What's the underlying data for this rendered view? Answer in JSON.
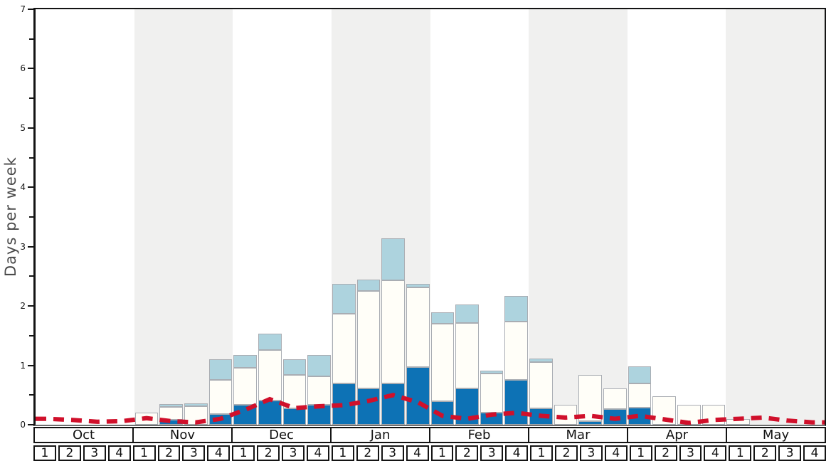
{
  "chart_data": {
    "type": "bar",
    "stacked": true,
    "title": "",
    "ylabel": "Days per week",
    "xlabel": "",
    "ylim": [
      0,
      7
    ],
    "y_major_tick_step": 1,
    "y_minor_tick_step": 0.5,
    "grid": false,
    "legend": "none",
    "months": [
      "Oct",
      "Nov",
      "Dec",
      "Jan",
      "Feb",
      "Mar",
      "Apr",
      "May"
    ],
    "week_labels": [
      "1",
      "2",
      "3",
      "4"
    ],
    "weeks_per_month": 4,
    "band_colors": [
      "#ffffff",
      "#f0f0ef"
    ],
    "bar_border_color": "#a9adb3",
    "axis_color": "#141414",
    "series": [
      {
        "name": "dark-blue-days",
        "color": "#0d72b5",
        "values": [
          0,
          0,
          0,
          0,
          0,
          0.08,
          0,
          0.18,
          0.33,
          0.41,
          0.27,
          0.33,
          0.69,
          0.61,
          0.69,
          0.97,
          0.39,
          0.61,
          0.2,
          0.75,
          0.28,
          0,
          0.06,
          0.26,
          0.29,
          0,
          0,
          0,
          0,
          0,
          0,
          0
        ]
      },
      {
        "name": "white-days",
        "color": "#fffef8",
        "values": [
          0,
          0,
          0,
          0,
          0.2,
          0.22,
          0.31,
          0.57,
          0.63,
          0.85,
          0.57,
          0.49,
          1.18,
          1.64,
          1.74,
          1.34,
          1.31,
          1.11,
          0.66,
          0.99,
          0.77,
          0.33,
          0.78,
          0.35,
          0.4,
          0.48,
          0.34,
          0.33,
          0.1,
          0,
          0,
          0
        ]
      },
      {
        "name": "light-blue-days",
        "color": "#add3de",
        "values": [
          0,
          0,
          0,
          0,
          0,
          0.05,
          0.05,
          0.35,
          0.22,
          0.27,
          0.26,
          0.36,
          0.5,
          0.2,
          0.71,
          0.06,
          0.19,
          0.31,
          0.05,
          0.43,
          0.06,
          0,
          0,
          0,
          0.29,
          0,
          0,
          0,
          0,
          0,
          0,
          0
        ]
      }
    ],
    "average_line": {
      "name": "red-dashed-average-line",
      "color": "#d0102b",
      "style": "dashed",
      "values": [
        0.1,
        0.08,
        0.05,
        0.06,
        0.11,
        0.06,
        0.04,
        0.1,
        0.25,
        0.43,
        0.28,
        0.31,
        0.33,
        0.4,
        0.5,
        0.38,
        0.15,
        0.1,
        0.17,
        0.2,
        0.15,
        0.12,
        0.15,
        0.1,
        0.15,
        0.09,
        0.03,
        0.08,
        0.1,
        0.12,
        0.07,
        0.04
      ]
    }
  }
}
